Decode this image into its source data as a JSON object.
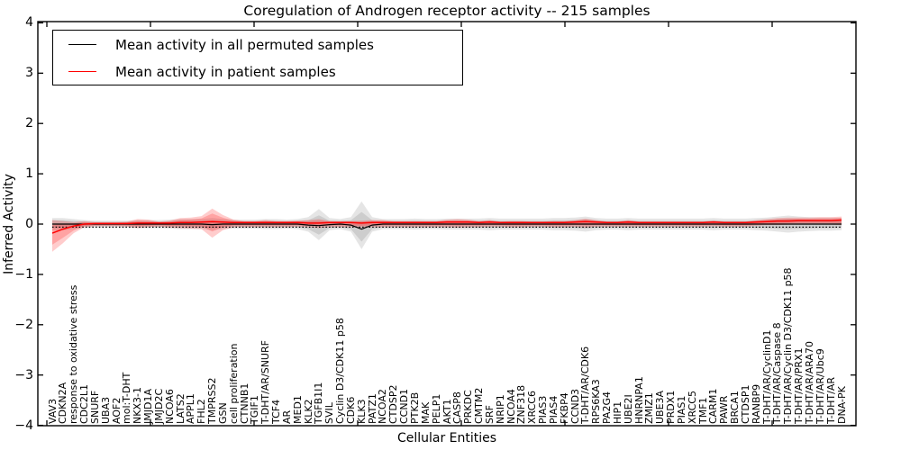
{
  "figure": {
    "title": "Coregulation of Androgen receptor activity -- 215 samples",
    "xlabel": "Cellular Entities",
    "ylabel": "Inferred Activity"
  },
  "legend": {
    "entries": [
      {
        "label": "Mean activity in all permuted samples",
        "color": "#000000"
      },
      {
        "label": "Mean activity in patient samples",
        "color": "#ff0000"
      }
    ]
  },
  "axes": {
    "yticks": [
      "4",
      "3",
      "2",
      "1",
      "0",
      "−1",
      "−2",
      "−3",
      "−4"
    ],
    "ytick_values": [
      4,
      3,
      2,
      1,
      0,
      -1,
      -2,
      -3,
      -4
    ],
    "ylim": [
      -4,
      4
    ]
  },
  "chart_data": {
    "type": "line",
    "title": "Coregulation of Androgen receptor activity -- 215 samples",
    "xlabel": "Cellular Entities",
    "ylabel": "Inferred Activity",
    "ylim": [
      -4,
      4
    ],
    "grid": false,
    "legend_position": "upper left",
    "categories": [
      "VAV3",
      "CDKN2A",
      "response to oxidative stress",
      "CDC2L1",
      "SNURF",
      "UBA3",
      "AOF2",
      "mol:T-DHT",
      "NKX3-1",
      "JMJD1A",
      "JMJD2C",
      "NCOA6",
      "LATS2",
      "APPL1",
      "FHL2",
      "TMPRSS2",
      "GSN",
      "cell proliferation",
      "CTNNB1",
      "TGIF1",
      "T-DHT/AR/SNURF",
      "TCF4",
      "AR",
      "MED1",
      "KLK2",
      "TGFB1I1",
      "SVIL",
      "Cyclin D3/CDK11 p58",
      "CDK6",
      "KLK3",
      "PATZ1",
      "NCOA2",
      "CTDSP2",
      "CCND1",
      "PTK2B",
      "MAK",
      "PELP1",
      "AKT1",
      "CASP8",
      "PRKDC",
      "CMTM2",
      "SRF",
      "NRIP1",
      "NCOA4",
      "ZNF318",
      "XRCC6",
      "PIAS3",
      "PIAS4",
      "FKBP4",
      "CCND3",
      "T-DHT/AR/CDK6",
      "RPS6KA3",
      "PA2G4",
      "HIP1",
      "UBE2I",
      "HNRNPA1",
      "ZMIZ1",
      "UBE3A",
      "PRDX1",
      "PIAS1",
      "XRCC5",
      "TMF1",
      "CARM1",
      "PAWR",
      "BRCA1",
      "CTDSP1",
      "RANBP9",
      "T-DHT/AR/CyclinD1",
      "T-DHT/AR/Caspase 8",
      "T-DHT/AR/Cyclin D3/CDK11 p58",
      "T-DHT/AR/PRX1",
      "T-DHT/AR/ARA70",
      "T-DHT/AR/Ubc9",
      "T-DHT/AR",
      "DNA-PK"
    ],
    "series": [
      {
        "name": "Mean activity in all permuted samples",
        "color": "#000000",
        "style": "solid",
        "values": [
          0,
          0,
          0,
          0,
          0,
          0,
          0,
          0,
          0,
          0,
          0,
          0,
          0,
          0,
          0,
          -0.01,
          0,
          0,
          0,
          0,
          0,
          0,
          0,
          0,
          -0.02,
          -0.03,
          -0.01,
          0,
          -0.02,
          -0.1,
          -0.02,
          0,
          0,
          0,
          0,
          0,
          0,
          0,
          0,
          0,
          0,
          0,
          0,
          0,
          0,
          0,
          0,
          0,
          0,
          0,
          0,
          0,
          0,
          0,
          0,
          0,
          0,
          0,
          0,
          0,
          0,
          0,
          0,
          0,
          0,
          0,
          0,
          0,
          0,
          0,
          0,
          0,
          0,
          0,
          0
        ]
      },
      {
        "name": "Mean activity in patient samples",
        "color": "#ff0000",
        "style": "solid",
        "values": [
          -0.18,
          -0.1,
          -0.04,
          0.0,
          0.01,
          0.01,
          0.01,
          0.01,
          0.02,
          0.02,
          0.02,
          0.02,
          0.03,
          0.03,
          0.04,
          0.05,
          0.04,
          0.03,
          0.03,
          0.03,
          0.03,
          0.03,
          0.03,
          0.03,
          0.02,
          0.02,
          0.03,
          0.03,
          0.03,
          0.02,
          0.03,
          0.03,
          0.03,
          0.03,
          0.03,
          0.03,
          0.03,
          0.04,
          0.04,
          0.04,
          0.03,
          0.04,
          0.03,
          0.03,
          0.03,
          0.03,
          0.03,
          0.03,
          0.03,
          0.04,
          0.05,
          0.04,
          0.03,
          0.03,
          0.04,
          0.03,
          0.03,
          0.03,
          0.03,
          0.03,
          0.03,
          0.03,
          0.04,
          0.03,
          0.03,
          0.03,
          0.04,
          0.05,
          0.06,
          0.06,
          0.07,
          0.07,
          0.07,
          0.07,
          0.08
        ]
      }
    ],
    "bands": [
      {
        "name": "permuted samples std band",
        "color": "rgba(0,0,0,0.10)",
        "upper": [
          0.12,
          0.12,
          0.1,
          0.08,
          0.07,
          0.07,
          0.07,
          0.07,
          0.08,
          0.08,
          0.08,
          0.09,
          0.1,
          0.1,
          0.1,
          0.12,
          0.1,
          0.09,
          0.09,
          0.09,
          0.1,
          0.1,
          0.09,
          0.1,
          0.14,
          0.3,
          0.12,
          0.1,
          0.14,
          0.45,
          0.14,
          0.1,
          0.1,
          0.1,
          0.11,
          0.1,
          0.1,
          0.11,
          0.11,
          0.11,
          0.11,
          0.12,
          0.11,
          0.11,
          0.11,
          0.11,
          0.11,
          0.12,
          0.12,
          0.13,
          0.15,
          0.12,
          0.11,
          0.11,
          0.12,
          0.11,
          0.11,
          0.11,
          0.11,
          0.11,
          0.11,
          0.11,
          0.12,
          0.11,
          0.11,
          0.11,
          0.12,
          0.13,
          0.15,
          0.17,
          0.15,
          0.14,
          0.13,
          0.13,
          0.12
        ],
        "lower": [
          -0.12,
          -0.12,
          -0.1,
          -0.08,
          -0.07,
          -0.07,
          -0.07,
          -0.07,
          -0.08,
          -0.08,
          -0.08,
          -0.09,
          -0.1,
          -0.1,
          -0.1,
          -0.12,
          -0.1,
          -0.09,
          -0.09,
          -0.09,
          -0.1,
          -0.1,
          -0.09,
          -0.1,
          -0.15,
          -0.32,
          -0.12,
          -0.1,
          -0.15,
          -0.5,
          -0.15,
          -0.1,
          -0.1,
          -0.1,
          -0.11,
          -0.1,
          -0.1,
          -0.11,
          -0.11,
          -0.11,
          -0.11,
          -0.12,
          -0.11,
          -0.11,
          -0.11,
          -0.11,
          -0.11,
          -0.12,
          -0.12,
          -0.13,
          -0.15,
          -0.12,
          -0.11,
          -0.11,
          -0.12,
          -0.11,
          -0.11,
          -0.11,
          -0.11,
          -0.11,
          -0.11,
          -0.11,
          -0.12,
          -0.11,
          -0.11,
          -0.11,
          -0.12,
          -0.13,
          -0.15,
          -0.17,
          -0.15,
          -0.14,
          -0.13,
          -0.13,
          -0.12
        ]
      },
      {
        "name": "patient samples std band",
        "color": "rgba(255,0,0,0.20)",
        "upper": [
          0.08,
          0.06,
          0.04,
          0.06,
          0.04,
          0.04,
          0.04,
          0.05,
          0.1,
          0.09,
          0.05,
          0.07,
          0.12,
          0.13,
          0.16,
          0.31,
          0.18,
          0.09,
          0.06,
          0.06,
          0.08,
          0.06,
          0.06,
          0.07,
          0.08,
          0.1,
          0.06,
          0.06,
          0.06,
          0.07,
          0.08,
          0.08,
          0.06,
          0.06,
          0.06,
          0.06,
          0.06,
          0.09,
          0.1,
          0.09,
          0.06,
          0.08,
          0.05,
          0.06,
          0.06,
          0.05,
          0.05,
          0.06,
          0.06,
          0.08,
          0.11,
          0.08,
          0.05,
          0.05,
          0.08,
          0.05,
          0.05,
          0.05,
          0.05,
          0.05,
          0.05,
          0.05,
          0.07,
          0.05,
          0.05,
          0.05,
          0.08,
          0.1,
          0.12,
          0.13,
          0.13,
          0.13,
          0.14,
          0.14,
          0.15
        ],
        "lower": [
          -0.55,
          -0.38,
          -0.18,
          -0.06,
          -0.04,
          -0.04,
          -0.04,
          -0.05,
          -0.08,
          -0.06,
          -0.05,
          -0.07,
          -0.08,
          -0.09,
          -0.1,
          -0.27,
          -0.12,
          -0.06,
          -0.06,
          -0.06,
          -0.06,
          -0.06,
          -0.06,
          -0.05,
          -0.06,
          -0.08,
          -0.06,
          -0.06,
          -0.06,
          -0.07,
          -0.06,
          -0.06,
          -0.06,
          -0.06,
          -0.06,
          -0.06,
          -0.06,
          -0.06,
          -0.07,
          -0.06,
          -0.06,
          -0.05,
          -0.05,
          -0.06,
          -0.06,
          -0.05,
          -0.05,
          -0.06,
          -0.06,
          -0.05,
          -0.07,
          -0.05,
          -0.05,
          -0.05,
          -0.05,
          -0.05,
          -0.05,
          -0.05,
          -0.05,
          -0.05,
          -0.05,
          -0.05,
          -0.04,
          -0.05,
          -0.05,
          -0.05,
          -0.03,
          -0.02,
          -0.02,
          -0.01,
          -0.01,
          -0.01,
          -0.01,
          -0.01,
          -0.02
        ]
      }
    ],
    "reference_line": {
      "y": -0.06,
      "style": "dotted",
      "color": "#000000"
    }
  }
}
